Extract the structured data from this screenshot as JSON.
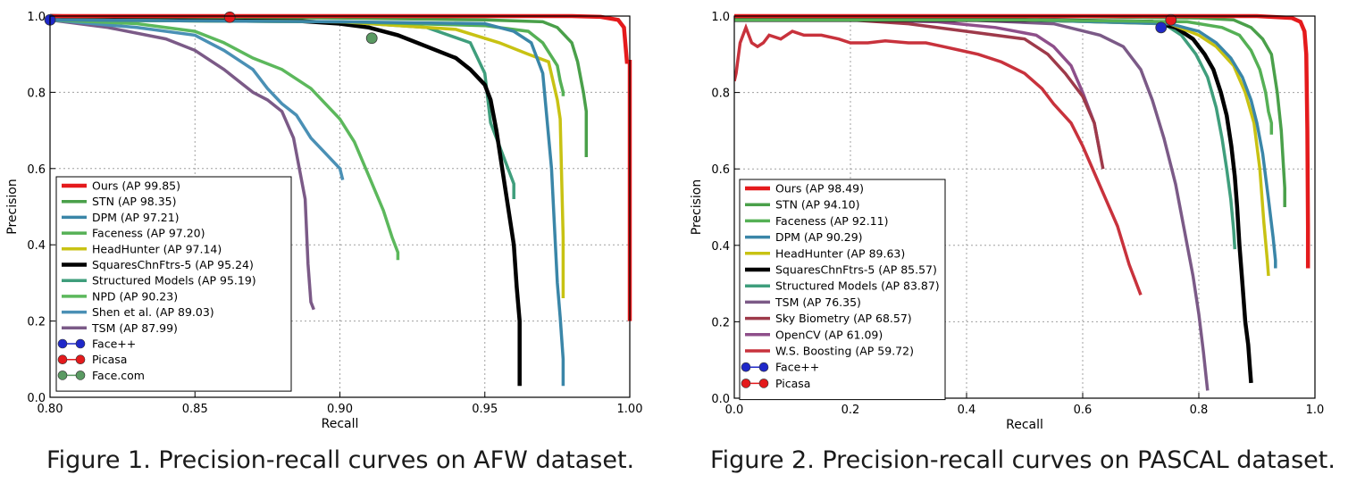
{
  "captions": {
    "fig1": "Figure 1. Precision-recall curves on AFW dataset.",
    "fig2": "Figure 2. Precision-recall curves on PASCAL dataset."
  },
  "chart_data": [
    {
      "type": "line",
      "xlabel": "Recall",
      "ylabel": "Precision",
      "xlim": [
        0.8,
        1.0
      ],
      "ylim": [
        0.0,
        1.0
      ],
      "xticks": [
        "0.80",
        "0.85",
        "0.90",
        "0.95",
        "1.00"
      ],
      "yticks": [
        "0.0",
        "0.2",
        "0.4",
        "0.6",
        "0.8",
        "1.0"
      ],
      "grid": true,
      "legend_position": "lower-left",
      "series": [
        {
          "name": "Ours (AP 99.85)",
          "color": "#e41a1c",
          "width": 4.5,
          "x": [
            0.8,
            0.85,
            0.9,
            0.95,
            0.98,
            0.99,
            0.996,
            0.998,
            0.999,
            1.0,
            1.0,
            1.0
          ],
          "y": [
            1.0,
            1.0,
            1.0,
            1.0,
            1.0,
            0.998,
            0.99,
            0.97,
            0.88,
            0.88,
            0.5,
            0.2
          ]
        },
        {
          "name": "STN (AP 98.35)",
          "color": "#4aa04a",
          "width": 3.5,
          "x": [
            0.8,
            0.9,
            0.95,
            0.97,
            0.975,
            0.98,
            0.982,
            0.984,
            0.985,
            0.985
          ],
          "y": [
            1.0,
            0.995,
            0.99,
            0.985,
            0.97,
            0.93,
            0.88,
            0.8,
            0.75,
            0.63
          ]
        },
        {
          "name": "DPM (AP 97.21)",
          "color": "#3a86a8",
          "width": 3.5,
          "x": [
            0.8,
            0.9,
            0.95,
            0.96,
            0.966,
            0.97,
            0.973,
            0.975,
            0.976,
            0.977,
            0.977
          ],
          "y": [
            0.99,
            0.985,
            0.98,
            0.96,
            0.93,
            0.85,
            0.6,
            0.3,
            0.21,
            0.1,
            0.03
          ]
        },
        {
          "name": "Faceness (AP 97.20)",
          "color": "#55b055",
          "width": 3.5,
          "x": [
            0.8,
            0.9,
            0.95,
            0.965,
            0.97,
            0.975,
            0.976,
            0.977,
            0.977
          ],
          "y": [
            0.99,
            0.985,
            0.975,
            0.96,
            0.93,
            0.87,
            0.83,
            0.8,
            0.79
          ]
        },
        {
          "name": "HeadHunter (AP 97.14)",
          "color": "#c8c213",
          "width": 3.5,
          "x": [
            0.8,
            0.9,
            0.94,
            0.955,
            0.965,
            0.972,
            0.975,
            0.976,
            0.977,
            0.977
          ],
          "y": [
            0.99,
            0.985,
            0.965,
            0.93,
            0.9,
            0.88,
            0.78,
            0.73,
            0.42,
            0.26
          ]
        },
        {
          "name": "SquaresChnFtrs-5 (AP 95.24)",
          "color": "#000000",
          "width": 4.5,
          "x": [
            0.8,
            0.88,
            0.9,
            0.91,
            0.92,
            0.93,
            0.94,
            0.945,
            0.95,
            0.952,
            0.954,
            0.956,
            0.958,
            0.96,
            0.961,
            0.962,
            0.962
          ],
          "y": [
            1.0,
            0.99,
            0.98,
            0.97,
            0.95,
            0.92,
            0.89,
            0.86,
            0.82,
            0.78,
            0.7,
            0.6,
            0.5,
            0.4,
            0.29,
            0.2,
            0.03
          ]
        },
        {
          "name": "Structured Models (AP 95.19)",
          "color": "#3f9e7c",
          "width": 3.5,
          "x": [
            0.8,
            0.9,
            0.93,
            0.945,
            0.95,
            0.952,
            0.955,
            0.958,
            0.96,
            0.96
          ],
          "y": [
            0.99,
            0.985,
            0.97,
            0.93,
            0.85,
            0.72,
            0.66,
            0.6,
            0.56,
            0.52
          ]
        },
        {
          "name": "NPD (AP 90.23)",
          "color": "#5cb85c",
          "width": 3.5,
          "x": [
            0.8,
            0.83,
            0.85,
            0.86,
            0.87,
            0.88,
            0.89,
            0.9,
            0.905,
            0.91,
            0.915,
            0.918,
            0.92,
            0.92
          ],
          "y": [
            0.99,
            0.98,
            0.96,
            0.93,
            0.89,
            0.86,
            0.81,
            0.73,
            0.67,
            0.58,
            0.49,
            0.42,
            0.38,
            0.36
          ]
        },
        {
          "name": "Shen et al. (AP 89.03)",
          "color": "#4a90b5",
          "width": 3.5,
          "x": [
            0.8,
            0.83,
            0.85,
            0.86,
            0.87,
            0.875,
            0.88,
            0.885,
            0.89,
            0.895,
            0.9,
            0.901
          ],
          "y": [
            0.99,
            0.97,
            0.95,
            0.91,
            0.86,
            0.81,
            0.77,
            0.74,
            0.68,
            0.64,
            0.6,
            0.57
          ]
        },
        {
          "name": "TSM (AP 87.99)",
          "color": "#7b5a87",
          "width": 3.5,
          "x": [
            0.8,
            0.82,
            0.84,
            0.85,
            0.86,
            0.865,
            0.87,
            0.875,
            0.88,
            0.884,
            0.886,
            0.888,
            0.889,
            0.89,
            0.891
          ],
          "y": [
            0.99,
            0.97,
            0.94,
            0.91,
            0.86,
            0.83,
            0.8,
            0.78,
            0.75,
            0.68,
            0.6,
            0.52,
            0.35,
            0.25,
            0.23
          ]
        }
      ],
      "points": [
        {
          "name": "Face++",
          "color": "#1f28c9",
          "x": 0.8,
          "y": 0.99
        },
        {
          "name": "Picasa",
          "color": "#e41a1c",
          "x": 0.862,
          "y": 0.997
        },
        {
          "name": "Face.com",
          "color": "#5a9a62",
          "x": 0.911,
          "y": 0.942
        }
      ]
    },
    {
      "type": "line",
      "xlabel": "Recall",
      "ylabel": "Precision",
      "xlim": [
        0.0,
        1.0
      ],
      "ylim": [
        0.0,
        1.0
      ],
      "xticks": [
        "0.0",
        "0.2",
        "0.4",
        "0.6",
        "0.8",
        "1.0"
      ],
      "yticks": [
        "0.0",
        "0.2",
        "0.4",
        "0.6",
        "0.8",
        "1.0"
      ],
      "grid": true,
      "legend_position": "lower-left",
      "series": [
        {
          "name": "Ours (AP 98.49)",
          "color": "#e41a1c",
          "width": 4.5,
          "x": [
            0.0,
            0.5,
            0.9,
            0.96,
            0.975,
            0.982,
            0.985,
            0.987,
            0.988,
            0.988
          ],
          "y": [
            1.0,
            1.0,
            1.0,
            0.995,
            0.985,
            0.96,
            0.9,
            0.7,
            0.45,
            0.34
          ]
        },
        {
          "name": "STN (AP 94.10)",
          "color": "#4aa04a",
          "width": 3.5,
          "x": [
            0.0,
            0.5,
            0.8,
            0.86,
            0.89,
            0.91,
            0.925,
            0.935,
            0.942,
            0.946,
            0.948,
            0.948
          ],
          "y": [
            1.0,
            1.0,
            0.995,
            0.99,
            0.97,
            0.94,
            0.9,
            0.8,
            0.7,
            0.6,
            0.55,
            0.5
          ]
        },
        {
          "name": "Faceness (AP 92.11)",
          "color": "#55b055",
          "width": 3.5,
          "x": [
            0.0,
            0.5,
            0.78,
            0.84,
            0.87,
            0.89,
            0.905,
            0.915,
            0.92,
            0.925,
            0.925
          ],
          "y": [
            0.99,
            0.99,
            0.985,
            0.97,
            0.95,
            0.91,
            0.86,
            0.8,
            0.75,
            0.72,
            0.69
          ]
        },
        {
          "name": "DPM (AP 90.29)",
          "color": "#3a86a8",
          "width": 3.5,
          "x": [
            0.0,
            0.5,
            0.75,
            0.8,
            0.83,
            0.855,
            0.875,
            0.89,
            0.9,
            0.91,
            0.92,
            0.928,
            0.932,
            0.932
          ],
          "y": [
            0.99,
            0.99,
            0.98,
            0.96,
            0.93,
            0.89,
            0.84,
            0.78,
            0.72,
            0.64,
            0.52,
            0.42,
            0.36,
            0.34
          ]
        },
        {
          "name": "HeadHunter (AP 89.63)",
          "color": "#c8c213",
          "width": 3.5,
          "x": [
            0.0,
            0.5,
            0.75,
            0.8,
            0.83,
            0.86,
            0.88,
            0.895,
            0.905,
            0.912,
            0.918,
            0.92
          ],
          "y": [
            0.99,
            0.99,
            0.98,
            0.95,
            0.92,
            0.87,
            0.8,
            0.72,
            0.6,
            0.46,
            0.36,
            0.32
          ]
        },
        {
          "name": "SquaresChnFtrs-5 (AP 85.57)",
          "color": "#000000",
          "width": 4.5,
          "x": [
            0.0,
            0.5,
            0.72,
            0.76,
            0.79,
            0.81,
            0.825,
            0.838,
            0.848,
            0.856,
            0.862,
            0.866,
            0.87,
            0.875,
            0.88,
            0.885,
            0.888,
            0.89
          ],
          "y": [
            0.99,
            0.99,
            0.985,
            0.97,
            0.94,
            0.9,
            0.86,
            0.8,
            0.74,
            0.66,
            0.58,
            0.5,
            0.4,
            0.3,
            0.2,
            0.14,
            0.08,
            0.04
          ]
        },
        {
          "name": "Structured Models (AP 83.87)",
          "color": "#3f9e7c",
          "width": 3.5,
          "x": [
            0.0,
            0.5,
            0.74,
            0.77,
            0.795,
            0.815,
            0.83,
            0.84,
            0.848,
            0.855,
            0.86,
            0.862
          ],
          "y": [
            0.99,
            0.99,
            0.98,
            0.95,
            0.9,
            0.84,
            0.76,
            0.68,
            0.6,
            0.52,
            0.44,
            0.39
          ]
        },
        {
          "name": "TSM (AP 76.35)",
          "color": "#7b5a87",
          "width": 3.5,
          "x": [
            0.0,
            0.4,
            0.55,
            0.63,
            0.67,
            0.7,
            0.72,
            0.74,
            0.76,
            0.775,
            0.79,
            0.8,
            0.808,
            0.813,
            0.815
          ],
          "y": [
            0.99,
            0.99,
            0.98,
            0.95,
            0.92,
            0.86,
            0.78,
            0.68,
            0.56,
            0.44,
            0.32,
            0.22,
            0.12,
            0.05,
            0.02
          ]
        },
        {
          "name": "Sky Biometry (AP 68.57)",
          "color": "#9e3a4a",
          "width": 3.5,
          "x": [
            0.0,
            0.2,
            0.3,
            0.4,
            0.5,
            0.54,
            0.57,
            0.6,
            0.62,
            0.63,
            0.635
          ],
          "y": [
            0.99,
            0.99,
            0.98,
            0.96,
            0.94,
            0.9,
            0.85,
            0.79,
            0.72,
            0.64,
            0.6
          ]
        },
        {
          "name": "OpenCV (AP 61.09)",
          "color": "#8e4f8a",
          "width": 3.5,
          "x": [
            0.0,
            0.2,
            0.35,
            0.45,
            0.52,
            0.55,
            0.58,
            0.6,
            0.62,
            0.63
          ],
          "y": [
            0.99,
            0.99,
            0.985,
            0.97,
            0.95,
            0.92,
            0.87,
            0.8,
            0.72,
            0.64
          ]
        },
        {
          "name": "W.S. Boosting (AP 59.72)",
          "color": "#c8323c",
          "width": 3.5,
          "x": [
            0.0,
            0.003,
            0.01,
            0.02,
            0.03,
            0.04,
            0.05,
            0.06,
            0.08,
            0.1,
            0.12,
            0.15,
            0.18,
            0.2,
            0.23,
            0.26,
            0.3,
            0.33,
            0.36,
            0.39,
            0.42,
            0.46,
            0.5,
            0.53,
            0.55,
            0.58,
            0.6,
            0.62,
            0.64,
            0.66,
            0.67,
            0.68,
            0.69,
            0.7
          ],
          "y": [
            0.83,
            0.85,
            0.93,
            0.97,
            0.93,
            0.92,
            0.93,
            0.95,
            0.94,
            0.96,
            0.95,
            0.95,
            0.94,
            0.93,
            0.93,
            0.935,
            0.93,
            0.93,
            0.92,
            0.91,
            0.9,
            0.88,
            0.85,
            0.81,
            0.77,
            0.72,
            0.66,
            0.59,
            0.52,
            0.45,
            0.4,
            0.35,
            0.31,
            0.27
          ]
        }
      ],
      "points": [
        {
          "name": "Face++",
          "color": "#1f28c9",
          "x": 0.735,
          "y": 0.97
        },
        {
          "name": "Picasa",
          "color": "#e41a1c",
          "x": 0.752,
          "y": 0.99
        }
      ]
    }
  ]
}
